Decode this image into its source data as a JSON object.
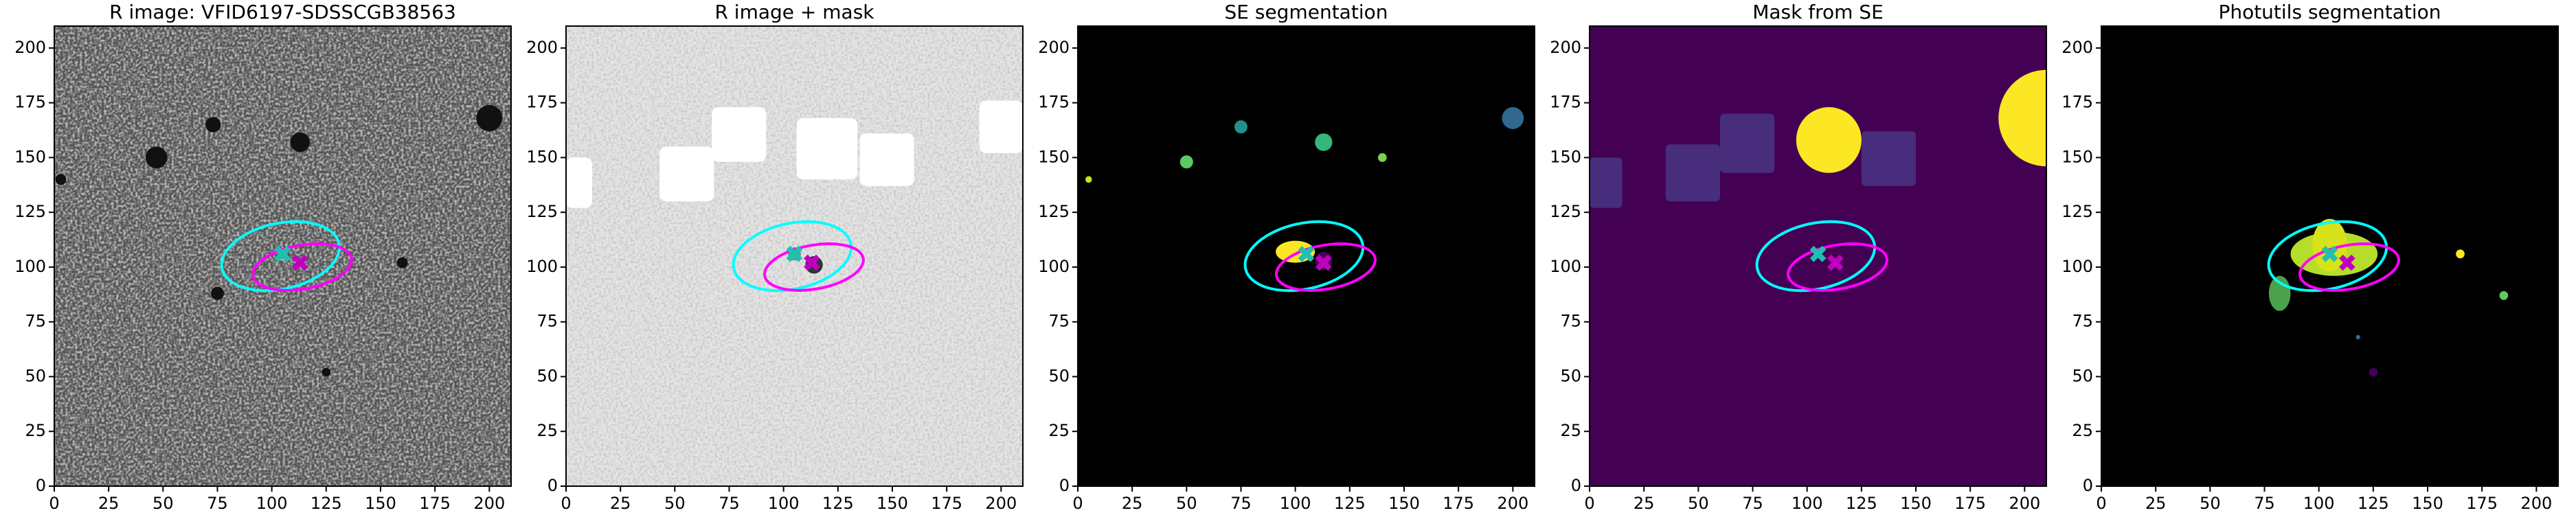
{
  "chart_data": [
    {
      "type": "image",
      "title": "R image: VFID6197-SDSSCGB38563",
      "background": "noise-dark",
      "xlim": [
        0,
        210
      ],
      "ylim": [
        0,
        210
      ],
      "xticks": [
        0,
        25,
        50,
        75,
        100,
        125,
        150,
        175,
        200
      ],
      "yticks": [
        0,
        25,
        50,
        75,
        100,
        125,
        150,
        175,
        200
      ]
    },
    {
      "type": "image",
      "title": "R image + mask",
      "background": "noise-light",
      "xlim": [
        0,
        210
      ],
      "ylim": [
        0,
        210
      ],
      "xticks": [
        0,
        25,
        50,
        75,
        100,
        125,
        150,
        175,
        200
      ],
      "yticks": [
        0,
        25,
        50,
        75,
        100,
        125,
        150,
        175,
        200
      ]
    },
    {
      "type": "image",
      "title": "SE segmentation",
      "background": "se-seg",
      "xlim": [
        0,
        210
      ],
      "ylim": [
        0,
        210
      ],
      "xticks": [
        0,
        25,
        50,
        75,
        100,
        125,
        150,
        175,
        200
      ],
      "yticks": [
        0,
        25,
        50,
        75,
        100,
        125,
        150,
        175,
        200
      ]
    },
    {
      "type": "image",
      "title": "Mask from SE",
      "background": "se-mask",
      "xlim": [
        0,
        210
      ],
      "ylim": [
        0,
        210
      ],
      "xticks": [
        0,
        25,
        50,
        75,
        100,
        125,
        150,
        175,
        200
      ],
      "yticks": [
        0,
        25,
        50,
        75,
        100,
        125,
        150,
        175,
        200
      ]
    },
    {
      "type": "image",
      "title": "Photutils segmentation",
      "background": "phot-seg",
      "xlim": [
        0,
        210
      ],
      "ylim": [
        0,
        210
      ],
      "xticks": [
        0,
        25,
        50,
        75,
        100,
        125,
        150,
        175,
        200
      ],
      "yticks": [
        0,
        25,
        50,
        75,
        100,
        125,
        150,
        175,
        200
      ]
    }
  ],
  "overlay": {
    "ellipses": [
      {
        "color": "#00ffff",
        "x": 104,
        "y": 105,
        "width": 55,
        "height": 30,
        "angle": 12
      },
      {
        "color": "#ff00ff",
        "x": 114,
        "y": 100,
        "width": 46,
        "height": 20,
        "angle": 10
      }
    ],
    "markers": [
      {
        "color": "#20c0b0",
        "x": 105,
        "y": 106
      },
      {
        "color": "#c000c0",
        "x": 113,
        "y": 102
      }
    ]
  }
}
